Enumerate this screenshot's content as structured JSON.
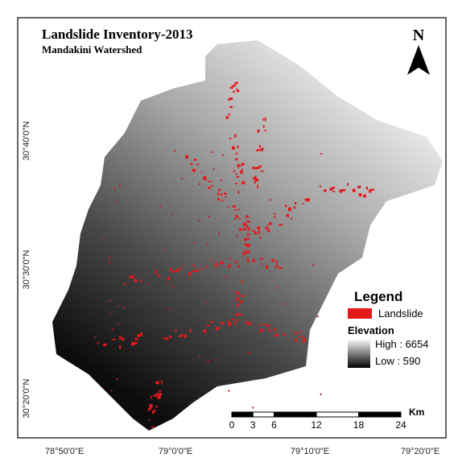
{
  "header": {
    "title": "Landslide Inventory-2013",
    "subtitle": "Mandakini Watershed"
  },
  "north": "N",
  "latitude_labels": [
    "30°40'0\"N",
    "30°30'0\"N",
    "30°20'0\"N"
  ],
  "longitude_labels": [
    "78°50'0\"E",
    "79°0'0\"E",
    "79°10'0\"E",
    "79°20'0\"E"
  ],
  "legend": {
    "title": "Legend",
    "landslide": "Landslide",
    "elevation": "Elevation",
    "high": "High : 6654",
    "low": "Low : 590"
  },
  "scale_bar": {
    "ticks": [
      0,
      3,
      6,
      12,
      18,
      24
    ],
    "unit": "Km"
  }
}
